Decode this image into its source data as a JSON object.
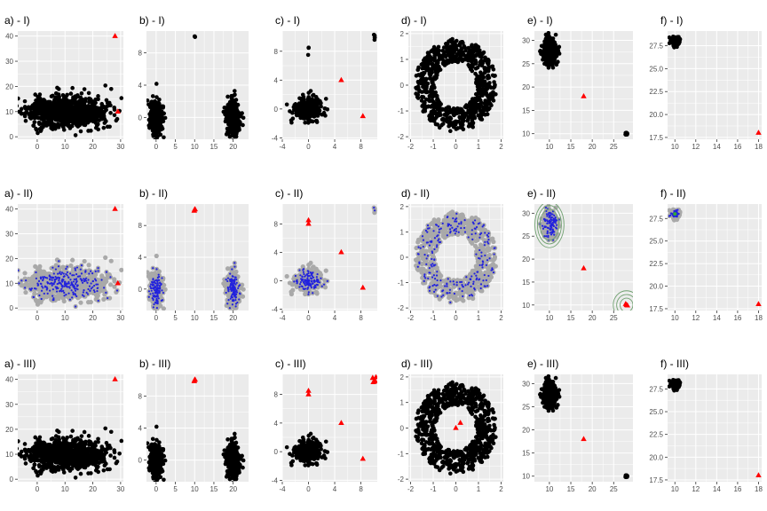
{
  "colors": {
    "panel_bg": "#EBEBEB",
    "grid": "#FFFFFF",
    "point": "#000000",
    "outlier": "#FF0000",
    "halo": "#A9A9A9",
    "core": "#2222DD",
    "contour": "#6FA06F",
    "center": "#33AA33",
    "tick_text": "#4D4D4D"
  },
  "chart_data": [
    {
      "id": "a1",
      "type": "scatter",
      "title": "a) - I)",
      "xlim": [
        -7,
        31
      ],
      "ylim": [
        -1,
        42
      ],
      "xticks": [
        0,
        10,
        20,
        30
      ],
      "yticks": [
        0,
        10,
        20,
        30,
        40
      ],
      "clusters": [
        {
          "shape": "gauss",
          "cx": 10,
          "cy": 10,
          "sx": 7,
          "sy": 3,
          "n": 900,
          "seed": 11
        }
      ],
      "outliers": [
        {
          "x": 28,
          "y": 40
        },
        {
          "x": 29,
          "y": 10
        }
      ],
      "style": "I"
    },
    {
      "id": "b1",
      "type": "scatter",
      "title": "b) - I)",
      "xlim": [
        -2.5,
        24
      ],
      "ylim": [
        -2.7,
        10.7
      ],
      "xticks": [
        0,
        5,
        10,
        15,
        20
      ],
      "yticks": [
        0,
        4,
        8
      ],
      "clusters": [
        {
          "shape": "gauss",
          "cx": 0,
          "cy": 0,
          "sx": 0.8,
          "sy": 1.0,
          "n": 400,
          "seed": 21
        },
        {
          "shape": "gauss",
          "cx": 20,
          "cy": 0,
          "sx": 0.8,
          "sy": 1.0,
          "n": 400,
          "seed": 22
        },
        {
          "shape": "gauss",
          "cx": 10,
          "cy": 10,
          "sx": 0.05,
          "sy": 0.05,
          "n": 4,
          "seed": 23
        }
      ],
      "outliers": [],
      "style": "I"
    },
    {
      "id": "c1",
      "type": "scatter",
      "title": "c) - I)",
      "xlim": [
        -4,
        10.5
      ],
      "ylim": [
        -4.2,
        10.8
      ],
      "xticks": [
        -4,
        0,
        4,
        8
      ],
      "yticks": [
        -4,
        0,
        4,
        8
      ],
      "clusters": [
        {
          "shape": "gauss",
          "cx": 0,
          "cy": 0,
          "sx": 1.0,
          "sy": 0.8,
          "n": 350,
          "seed": 31
        },
        {
          "shape": "gauss",
          "cx": 0,
          "cy": 8.2,
          "sx": 0.05,
          "sy": 0.25,
          "n": 3,
          "seed": 32
        },
        {
          "shape": "gauss",
          "cx": 10,
          "cy": 10,
          "sx": 0.15,
          "sy": 0.3,
          "n": 5,
          "seed": 33
        }
      ],
      "outliers": [
        {
          "x": 5,
          "y": 4
        },
        {
          "x": 8.3,
          "y": -1
        }
      ],
      "style": "I"
    },
    {
      "id": "d1",
      "type": "scatter",
      "title": "d) - I)",
      "xlim": [
        -2.1,
        2.1
      ],
      "ylim": [
        -2.1,
        2.1
      ],
      "xticks": [
        -2,
        -1,
        0,
        1,
        2
      ],
      "yticks": [
        -2,
        -1,
        0,
        1,
        2
      ],
      "clusters": [
        {
          "shape": "ring",
          "r1": 0.9,
          "r2": 1.8,
          "n": 750,
          "seed": 41
        }
      ],
      "outliers": [],
      "style": "I"
    },
    {
      "id": "e1",
      "type": "scatter",
      "title": "e) - I)",
      "xlim": [
        6.5,
        29.5
      ],
      "ylim": [
        8.8,
        32
      ],
      "xticks": [
        10,
        15,
        20,
        25
      ],
      "yticks": [
        10,
        15,
        20,
        25,
        30
      ],
      "clusters": [
        {
          "shape": "gauss",
          "cx": 10,
          "cy": 27.5,
          "sx": 0.8,
          "sy": 1.4,
          "n": 350,
          "seed": 51
        },
        {
          "shape": "gauss",
          "cx": 28,
          "cy": 10,
          "sx": 0.1,
          "sy": 0.1,
          "n": 40,
          "seed": 52
        }
      ],
      "outliers": [
        {
          "x": 18,
          "y": 18
        }
      ],
      "style": "I"
    },
    {
      "id": "f1",
      "type": "scatter",
      "title": "f) - I)",
      "xlim": [
        9.3,
        18.3
      ],
      "ylim": [
        17.3,
        29.1
      ],
      "xticks": [
        10,
        12,
        14,
        16,
        18
      ],
      "yticks": [
        17.5,
        20.0,
        22.5,
        25.0,
        27.5
      ],
      "clusters": [
        {
          "shape": "gauss",
          "cx": 10,
          "cy": 28,
          "sx": 0.2,
          "sy": 0.2,
          "n": 200,
          "seed": 61
        }
      ],
      "outliers": [
        {
          "x": 18,
          "y": 18
        }
      ],
      "style": "I"
    },
    {
      "id": "a2",
      "type": "scatter",
      "title": "a) - II)",
      "xlim": [
        -7,
        31
      ],
      "ylim": [
        -1,
        42
      ],
      "xticks": [
        0,
        10,
        20,
        30
      ],
      "yticks": [
        0,
        10,
        20,
        30,
        40
      ],
      "clusters": [
        {
          "shape": "gauss",
          "cx": 10,
          "cy": 10,
          "sx": 7,
          "sy": 3,
          "n": 900,
          "seed": 11
        }
      ],
      "outliers": [
        {
          "x": 28,
          "y": 40
        },
        {
          "x": 29,
          "y": 10
        }
      ],
      "style": "II"
    },
    {
      "id": "b2",
      "type": "scatter",
      "title": "b) - II)",
      "xlim": [
        -2.5,
        24
      ],
      "ylim": [
        -2.7,
        10.7
      ],
      "xticks": [
        0,
        5,
        10,
        15,
        20
      ],
      "yticks": [
        0,
        4,
        8
      ],
      "clusters": [
        {
          "shape": "gauss",
          "cx": 0,
          "cy": 0,
          "sx": 0.8,
          "sy": 1.0,
          "n": 400,
          "seed": 21
        },
        {
          "shape": "gauss",
          "cx": 20,
          "cy": 0,
          "sx": 0.8,
          "sy": 1.0,
          "n": 400,
          "seed": 22
        }
      ],
      "outliers": [
        {
          "x": 10,
          "y": 10
        },
        {
          "x": 9.9,
          "y": 9.85
        },
        {
          "x": 10.1,
          "y": 10.05
        }
      ],
      "style": "II"
    },
    {
      "id": "c2",
      "type": "scatter",
      "title": "c) - II)",
      "xlim": [
        -4,
        10.5
      ],
      "ylim": [
        -4.2,
        10.8
      ],
      "xticks": [
        -4,
        0,
        4,
        8
      ],
      "yticks": [
        -4,
        0,
        4,
        8
      ],
      "clusters": [
        {
          "shape": "gauss",
          "cx": 0,
          "cy": 0,
          "sx": 1.0,
          "sy": 0.8,
          "n": 350,
          "seed": 31
        },
        {
          "shape": "gauss",
          "cx": 10,
          "cy": 10,
          "sx": 0.15,
          "sy": 0.3,
          "n": 5,
          "seed": 33
        }
      ],
      "outliers": [
        {
          "x": 0,
          "y": 8.5
        },
        {
          "x": 0,
          "y": 8
        },
        {
          "x": 5,
          "y": 4
        },
        {
          "x": 8.3,
          "y": -1
        }
      ],
      "style": "II"
    },
    {
      "id": "d2",
      "type": "scatter",
      "title": "d) - II)",
      "xlim": [
        -2.1,
        2.1
      ],
      "ylim": [
        -2.1,
        2.1
      ],
      "xticks": [
        -2,
        -1,
        0,
        1,
        2
      ],
      "yticks": [
        -2,
        -1,
        0,
        1,
        2
      ],
      "clusters": [
        {
          "shape": "ring",
          "r1": 0.9,
          "r2": 1.8,
          "n": 750,
          "seed": 41
        }
      ],
      "outliers": [],
      "style": "II"
    },
    {
      "id": "e2",
      "type": "scatter",
      "title": "e) - II)",
      "xlim": [
        6.5,
        29.5
      ],
      "ylim": [
        8.8,
        32
      ],
      "xticks": [
        10,
        15,
        20,
        25
      ],
      "yticks": [
        10,
        15,
        20,
        25,
        30
      ],
      "clusters": [
        {
          "shape": "gauss",
          "cx": 10,
          "cy": 27.5,
          "sx": 0.8,
          "sy": 1.4,
          "n": 350,
          "seed": 51
        }
      ],
      "outliers": [
        {
          "x": 18,
          "y": 18
        },
        {
          "x": 28,
          "y": 10
        },
        {
          "x": 27.8,
          "y": 10.2
        },
        {
          "x": 28.2,
          "y": 9.9
        }
      ],
      "style": "II",
      "contours": [
        {
          "cx": 10,
          "cy": 27.5,
          "rx": [
            2.2,
            2.8,
            3.4
          ],
          "ry": [
            3.4,
            4.2,
            5.0
          ]
        },
        {
          "cx": 28,
          "cy": 10,
          "rx": [
            1.5,
            2.3,
            3.1
          ],
          "ry": [
            1.5,
            2.3,
            3.1
          ]
        }
      ]
    },
    {
      "id": "f2",
      "type": "scatter",
      "title": "f) - II)",
      "xlim": [
        9.3,
        18.3
      ],
      "ylim": [
        17.3,
        29.1
      ],
      "xticks": [
        10,
        12,
        14,
        16,
        18
      ],
      "yticks": [
        17.5,
        20.0,
        22.5,
        25.0,
        27.5
      ],
      "clusters": [
        {
          "shape": "gauss",
          "cx": 10,
          "cy": 28,
          "sx": 0.2,
          "sy": 0.2,
          "n": 200,
          "seed": 61
        }
      ],
      "outliers": [
        {
          "x": 18,
          "y": 18
        }
      ],
      "style": "II"
    },
    {
      "id": "a3",
      "type": "scatter",
      "title": "a) - III)",
      "xlim": [
        -7,
        31
      ],
      "ylim": [
        -1,
        42
      ],
      "xticks": [
        0,
        10,
        20,
        30
      ],
      "yticks": [
        0,
        10,
        20,
        30,
        40
      ],
      "clusters": [
        {
          "shape": "gauss",
          "cx": 10,
          "cy": 10,
          "sx": 7,
          "sy": 3,
          "n": 900,
          "seed": 11
        }
      ],
      "outliers": [
        {
          "x": 28,
          "y": 40
        }
      ],
      "style": "I"
    },
    {
      "id": "b3",
      "type": "scatter",
      "title": "b) - III)",
      "xlim": [
        -2.5,
        24
      ],
      "ylim": [
        -2.7,
        10.7
      ],
      "xticks": [
        0,
        5,
        10,
        15,
        20
      ],
      "yticks": [
        0,
        4,
        8
      ],
      "clusters": [
        {
          "shape": "gauss",
          "cx": 0,
          "cy": 0,
          "sx": 0.8,
          "sy": 1.0,
          "n": 400,
          "seed": 21
        },
        {
          "shape": "gauss",
          "cx": 20,
          "cy": 0,
          "sx": 0.8,
          "sy": 1.0,
          "n": 400,
          "seed": 22
        }
      ],
      "outliers": [
        {
          "x": 10,
          "y": 10
        },
        {
          "x": 9.9,
          "y": 9.85
        },
        {
          "x": 10.1,
          "y": 10.05
        }
      ],
      "style": "I"
    },
    {
      "id": "c3",
      "type": "scatter",
      "title": "c) - III)",
      "xlim": [
        -4,
        10.5
      ],
      "ylim": [
        -4.2,
        10.8
      ],
      "xticks": [
        -4,
        0,
        4,
        8
      ],
      "yticks": [
        -4,
        0,
        4,
        8
      ],
      "clusters": [
        {
          "shape": "gauss",
          "cx": 0,
          "cy": 0,
          "sx": 1.0,
          "sy": 0.8,
          "n": 350,
          "seed": 31
        }
      ],
      "outliers": [
        {
          "x": 0,
          "y": 8.5
        },
        {
          "x": 0,
          "y": 8
        },
        {
          "x": 5,
          "y": 4
        },
        {
          "x": 8.3,
          "y": -1
        },
        {
          "x": 9.8,
          "y": 10.3
        },
        {
          "x": 10.1,
          "y": 10
        },
        {
          "x": 10.3,
          "y": 10.4
        },
        {
          "x": 9.9,
          "y": 9.7
        },
        {
          "x": 10.2,
          "y": 9.8
        }
      ],
      "style": "I"
    },
    {
      "id": "d3",
      "type": "scatter",
      "title": "d) - III)",
      "xlim": [
        -2.1,
        2.1
      ],
      "ylim": [
        -2.1,
        2.1
      ],
      "xticks": [
        -2,
        -1,
        0,
        1,
        2
      ],
      "yticks": [
        -2,
        -1,
        0,
        1,
        2
      ],
      "clusters": [
        {
          "shape": "ring",
          "r1": 0.9,
          "r2": 1.8,
          "n": 750,
          "seed": 41
        }
      ],
      "outliers": [
        {
          "x": 0,
          "y": 0
        },
        {
          "x": 0.2,
          "y": 0.2
        }
      ],
      "style": "I"
    },
    {
      "id": "e3",
      "type": "scatter",
      "title": "e) - III)",
      "xlim": [
        6.5,
        29.5
      ],
      "ylim": [
        8.8,
        32
      ],
      "xticks": [
        10,
        15,
        20,
        25
      ],
      "yticks": [
        10,
        15,
        20,
        25,
        30
      ],
      "clusters": [
        {
          "shape": "gauss",
          "cx": 10,
          "cy": 27.5,
          "sx": 0.8,
          "sy": 1.4,
          "n": 350,
          "seed": 51
        },
        {
          "shape": "gauss",
          "cx": 28,
          "cy": 10,
          "sx": 0.1,
          "sy": 0.1,
          "n": 40,
          "seed": 52
        }
      ],
      "outliers": [
        {
          "x": 18,
          "y": 18
        }
      ],
      "style": "I"
    },
    {
      "id": "f3",
      "type": "scatter",
      "title": "f) - III)",
      "xlim": [
        9.3,
        18.3
      ],
      "ylim": [
        17.3,
        29.1
      ],
      "xticks": [
        10,
        12,
        14,
        16,
        18
      ],
      "yticks": [
        17.5,
        20.0,
        22.5,
        25.0,
        27.5
      ],
      "clusters": [
        {
          "shape": "gauss",
          "cx": 10,
          "cy": 28,
          "sx": 0.2,
          "sy": 0.2,
          "n": 200,
          "seed": 61
        }
      ],
      "outliers": [
        {
          "x": 18,
          "y": 18
        }
      ],
      "style": "I"
    }
  ]
}
